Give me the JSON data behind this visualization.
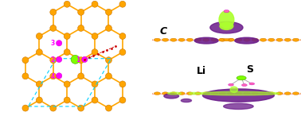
{
  "bg_color": "#ffffff",
  "orange": "#FFA500",
  "orange_edge": "#CC7700",
  "bond_color": "#FFA500",
  "cyan_cell": "#00CFFF",
  "magenta": "#FF00FF",
  "magenta_edge": "#CC00CC",
  "green_def": "#7FFF00",
  "green_def_edge": "#50C000",
  "red_path": "#CC0000",
  "purple": "#6A1B8A",
  "ygreen": "#ADFF2F",
  "pink": "#FF69B4",
  "chain_line": "#FFB6C1",
  "gray_bond": "#AAAAAA",
  "a_lat": 1.42,
  "atom_r": 0.28,
  "site_r": 0.26,
  "def_r": 0.38,
  "xlim": [
    -1.0,
    10.5
  ],
  "ylim": [
    -0.8,
    10.0
  ]
}
